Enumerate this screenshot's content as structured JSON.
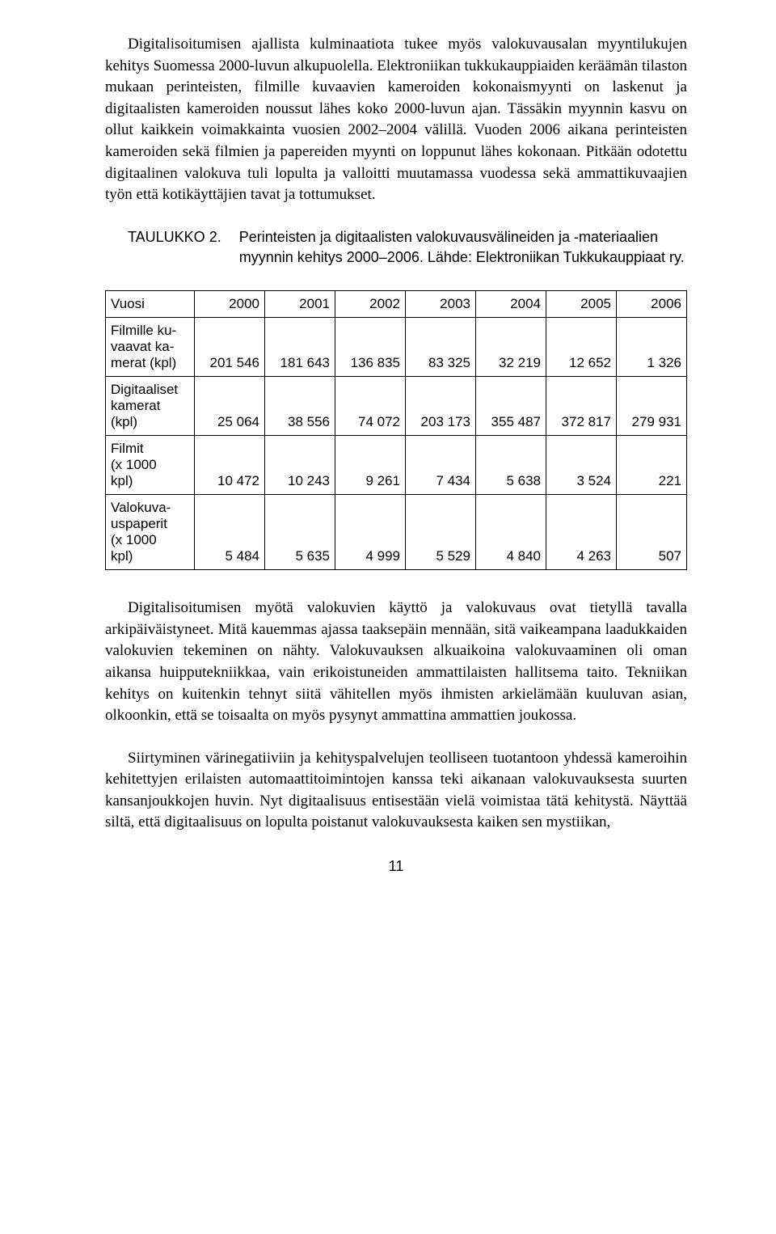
{
  "page": {
    "number": "11"
  },
  "paragraphs": {
    "p1": "Digitalisoitumisen ajallista kulminaatiota tukee myös valokuvausalan myyntilukujen kehitys Suomessa 2000-luvun alkupuolella. Elektroniikan tukkukauppiaiden keräämän tilaston mukaan perinteisten, filmille kuvaavien kameroiden kokonaismyynti on laskenut ja digitaalisten kameroiden noussut lähes koko 2000-luvun ajan. Tässäkin myynnin kasvu on ollut kaikkein voimakkainta vuosien 2002–2004 välillä. Vuoden 2006 aikana perinteisten kameroiden sekä filmien ja papereiden myynti on loppunut lähes kokonaan. Pitkään odotettu digitaalinen valokuva tuli lopulta ja valloitti muutamassa vuodessa sekä ammattikuvaajien työn että kotikäyttäjien tavat ja tottumukset.",
    "p2": "Digitalisoitumisen myötä valokuvien käyttö ja valokuvaus ovat tietyllä tavalla arkipäiväistyneet. Mitä kauemmas ajassa taaksepäin mennään, sitä vaikeampana laadukkaiden valokuvien tekeminen on nähty. Valokuvauksen alkuaikoina valokuvaaminen oli oman aikansa huipputekniikkaa, vain erikoistuneiden ammattilaisten hallitsema taito. Tekniikan kehitys on kuitenkin tehnyt siitä vähitellen myös ihmisten arkielämään kuuluvan asian, olkoonkin, että se toisaalta on myös pysynyt ammattina ammattien joukossa.",
    "p3": "Siirtyminen värinegatiiviin ja kehityspalvelujen teolliseen tuotantoon yhdessä kameroihin kehitettyjen erilaisten automaattitoimintojen kanssa teki aikanaan valokuvauksesta suurten kansanjoukkojen huvin. Nyt digitaalisuus entisestään vielä voimistaa tätä kehitystä. Näyttää siltä, että digitaalisuus on lopulta poistanut valokuvauksesta kaiken sen mystiikan,"
  },
  "tableCaption": {
    "label": "TAULUKKO 2.",
    "text": "Perinteisten ja digitaalisten valokuvausvälineiden ja -materiaalien myynnin kehitys 2000–2006. Lähde: Elektroniikan Tukkukauppiaat ry."
  },
  "table": {
    "header": [
      "Vuosi",
      "2000",
      "2001",
      "2002",
      "2003",
      "2004",
      "2005",
      "2006"
    ],
    "rows": [
      {
        "label": "Filmille ku-\nvaavat ka-\nmerat (kpl)",
        "cells": [
          "201 546",
          "181 643",
          "136 835",
          "83 325",
          "32 219",
          "12 652",
          "1 326"
        ]
      },
      {
        "label": "Digitaaliset\nkamerat\n(kpl)",
        "cells": [
          "25 064",
          "38 556",
          "74 072",
          "203 173",
          "355 487",
          "372 817",
          "279 931"
        ]
      },
      {
        "label": "Filmit\n(x 1000\nkpl)",
        "cells": [
          "10 472",
          "10 243",
          "9 261",
          "7 434",
          "5 638",
          "3 524",
          "221"
        ]
      },
      {
        "label": "Valokuva-\nuspaperit\n(x 1000\nkpl)",
        "cells": [
          "5 484",
          "5 635",
          "4 999",
          "5 529",
          "4 840",
          "4 263",
          "507"
        ]
      }
    ]
  },
  "typography": {
    "body_font_family": "Georgia, Times New Roman, serif",
    "body_font_size_pt": 14,
    "sans_font_family": "Arial, Helvetica, sans-serif",
    "table_font_size_pt": 13,
    "text_color": "#000000",
    "background_color": "#ffffff",
    "table_border_color": "#000000"
  }
}
